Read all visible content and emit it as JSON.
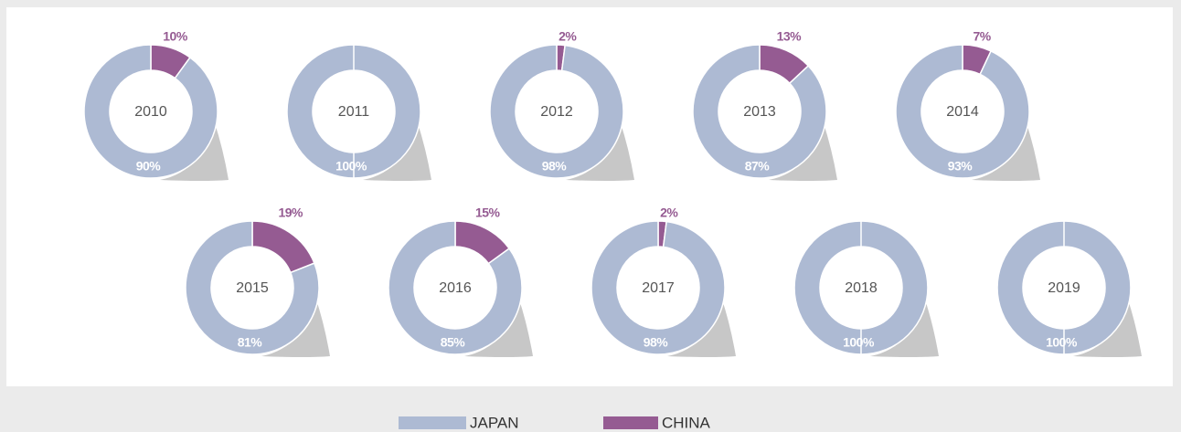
{
  "chart_data": [
    {
      "type": "donut",
      "title": "2010",
      "categories": [
        "JAPAN",
        "CHINA"
      ],
      "values": [
        90,
        10
      ],
      "value_labels": [
        "90%",
        "10%"
      ],
      "colors": [
        "#adbad3",
        "#955b92"
      ]
    },
    {
      "type": "donut",
      "title": "2011",
      "categories": [
        "JAPAN",
        "CHINA"
      ],
      "values": [
        100,
        0
      ],
      "value_labels": [
        "100%",
        null
      ],
      "colors": [
        "#adbad3",
        "#955b92"
      ]
    },
    {
      "type": "donut",
      "title": "2012",
      "categories": [
        "JAPAN",
        "CHINA"
      ],
      "values": [
        98,
        2
      ],
      "value_labels": [
        "98%",
        "2%"
      ],
      "colors": [
        "#adbad3",
        "#955b92"
      ]
    },
    {
      "type": "donut",
      "title": "2013",
      "categories": [
        "JAPAN",
        "CHINA"
      ],
      "values": [
        87,
        13
      ],
      "value_labels": [
        "87%",
        "13%"
      ],
      "colors": [
        "#adbad3",
        "#955b92"
      ]
    },
    {
      "type": "donut",
      "title": "2014",
      "categories": [
        "JAPAN",
        "CHINA"
      ],
      "values": [
        93,
        7
      ],
      "value_labels": [
        "93%",
        "7%"
      ],
      "colors": [
        "#adbad3",
        "#955b92"
      ]
    },
    {
      "type": "donut",
      "title": "2015",
      "categories": [
        "JAPAN",
        "CHINA"
      ],
      "values": [
        81,
        19
      ],
      "value_labels": [
        "81%",
        "19%"
      ],
      "colors": [
        "#adbad3",
        "#955b92"
      ]
    },
    {
      "type": "donut",
      "title": "2016",
      "categories": [
        "JAPAN",
        "CHINA"
      ],
      "values": [
        85,
        15
      ],
      "value_labels": [
        "85%",
        "15%"
      ],
      "colors": [
        "#adbad3",
        "#955b92"
      ]
    },
    {
      "type": "donut",
      "title": "2017",
      "categories": [
        "JAPAN",
        "CHINA"
      ],
      "values": [
        98,
        2
      ],
      "value_labels": [
        "98%",
        "2%"
      ],
      "colors": [
        "#adbad3",
        "#955b92"
      ]
    },
    {
      "type": "donut",
      "title": "2018",
      "categories": [
        "JAPAN",
        "CHINA"
      ],
      "values": [
        100,
        0
      ],
      "value_labels": [
        "100%",
        null
      ],
      "colors": [
        "#adbad3",
        "#955b92"
      ]
    },
    {
      "type": "donut",
      "title": "2019",
      "categories": [
        "JAPAN",
        "CHINA"
      ],
      "values": [
        100,
        0
      ],
      "value_labels": [
        "100%",
        null
      ],
      "colors": [
        "#adbad3",
        "#955b92"
      ]
    }
  ]
}
